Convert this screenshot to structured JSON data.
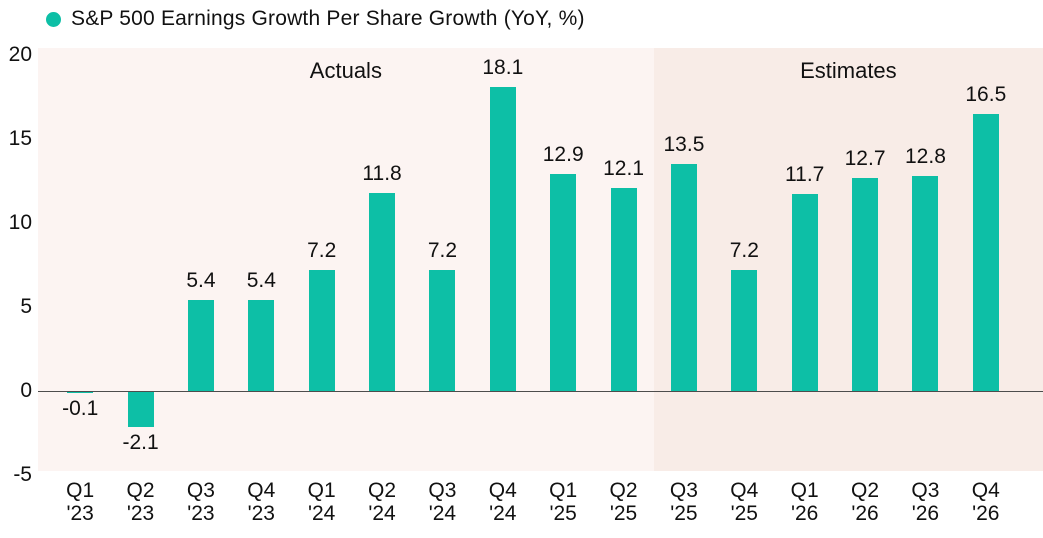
{
  "legend": {
    "label": "S&P 500 Earnings Growth Per Share Growth (YoY, %)",
    "marker_color": "#0dbfa6"
  },
  "chart_data": {
    "type": "bar",
    "title": "S&P 500 Earnings Growth Per Share Growth (YoY, %)",
    "categories": [
      [
        "Q1",
        "'23"
      ],
      [
        "Q2",
        "'23"
      ],
      [
        "Q3",
        "'23"
      ],
      [
        "Q4",
        "'23"
      ],
      [
        "Q1",
        "'24"
      ],
      [
        "Q2",
        "'24"
      ],
      [
        "Q3",
        "'24"
      ],
      [
        "Q4",
        "'24"
      ],
      [
        "Q1",
        "'25"
      ],
      [
        "Q2",
        "'25"
      ],
      [
        "Q3",
        "'25"
      ],
      [
        "Q4",
        "'25"
      ],
      [
        "Q1",
        "'26"
      ],
      [
        "Q2",
        "'26"
      ],
      [
        "Q3",
        "'26"
      ],
      [
        "Q4",
        "'26"
      ]
    ],
    "values": [
      -0.1,
      -2.1,
      5.4,
      5.4,
      7.2,
      11.8,
      7.2,
      18.1,
      12.9,
      12.1,
      13.5,
      7.2,
      11.7,
      12.7,
      12.8,
      16.5
    ],
    "value_labels": [
      "-0.1",
      "-2.1",
      "5.4",
      "5.4",
      "7.2",
      "11.8",
      "7.2",
      "18.1",
      "12.9",
      "12.1",
      "13.5",
      "7.2",
      "11.7",
      "12.7",
      "12.8",
      "16.5"
    ],
    "bar_color": "#0dbfa6",
    "sections": [
      {
        "label": "Actuals",
        "start_index": 0,
        "end_index": 9,
        "bg_color": "#fcf4f2"
      },
      {
        "label": "Estimates",
        "start_index": 10,
        "end_index": 15,
        "bg_color": "#f8ece7"
      }
    ],
    "yticks": [
      20,
      15,
      10,
      5,
      0,
      -5
    ],
    "ylim": [
      -5,
      20.4
    ],
    "grid": false,
    "legend_position": "top-left",
    "zero_line_color": "#4d4d4d",
    "text_color": "#111111",
    "xlabel": "",
    "ylabel": ""
  }
}
